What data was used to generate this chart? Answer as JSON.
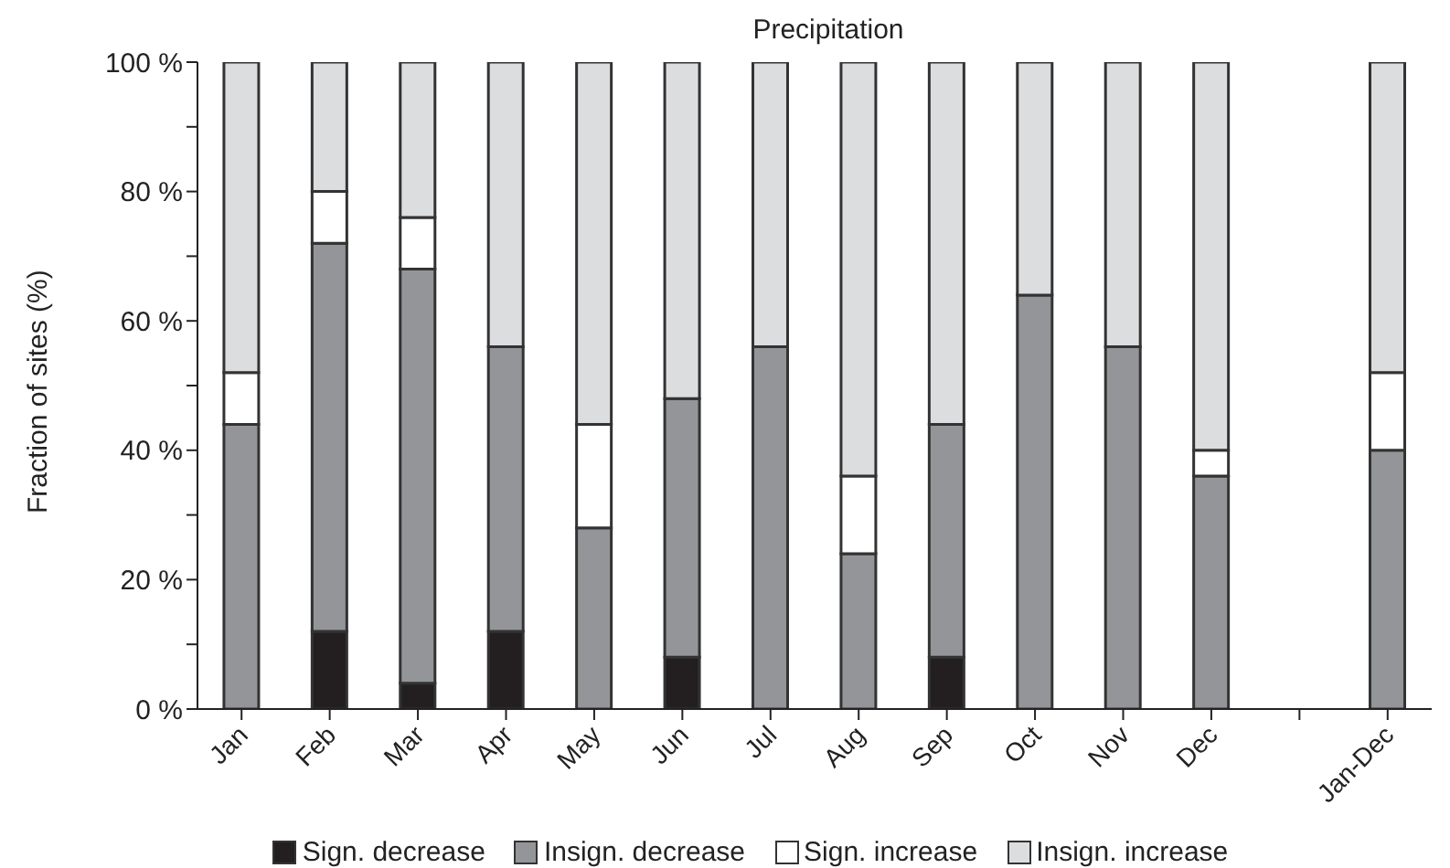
{
  "chart_data": {
    "type": "bar",
    "title": "Precipitation",
    "ylabel": "Fraction of sites (%)",
    "stacked": true,
    "legend": "bottom",
    "categories": [
      "Jan",
      "Feb",
      "Mar",
      "Apr",
      "May",
      "Jun",
      "Jul",
      "Aug",
      "Sep",
      "Oct",
      "Nov",
      "Dec",
      null,
      "Jan-Dec"
    ],
    "series": [
      {
        "name": "Sign. decrease",
        "color": "#231f20",
        "values": [
          0,
          12,
          4,
          12,
          0,
          8,
          0,
          0,
          8,
          0,
          0,
          0,
          null,
          0
        ]
      },
      {
        "name": "Insign. decrease",
        "color": "#939598",
        "values": [
          44,
          60,
          64,
          44,
          28,
          40,
          56,
          24,
          36,
          64,
          56,
          36,
          null,
          40
        ]
      },
      {
        "name": "Sign. increase",
        "color": "#ffffff",
        "values": [
          8,
          8,
          8,
          0,
          16,
          0,
          0,
          12,
          0,
          0,
          0,
          4,
          null,
          12
        ]
      },
      {
        "name": "Insign. increase",
        "color": "#dcdddf",
        "values": [
          48,
          20,
          24,
          44,
          56,
          52,
          44,
          64,
          56,
          36,
          44,
          60,
          null,
          48
        ]
      }
    ],
    "ylim": [
      0,
      100
    ],
    "yticks": [
      {
        "value": 0,
        "label": "0 %"
      },
      {
        "value": 10,
        "label": null
      },
      {
        "value": 20,
        "label": "20 %"
      },
      {
        "value": 30,
        "label": null
      },
      {
        "value": 40,
        "label": "40 %"
      },
      {
        "value": 50,
        "label": null
      },
      {
        "value": 60,
        "label": "60 %"
      },
      {
        "value": 70,
        "label": null
      },
      {
        "value": 80,
        "label": "80 %"
      },
      {
        "value": 90,
        "label": null
      },
      {
        "value": 100,
        "label": "100 %"
      }
    ]
  }
}
